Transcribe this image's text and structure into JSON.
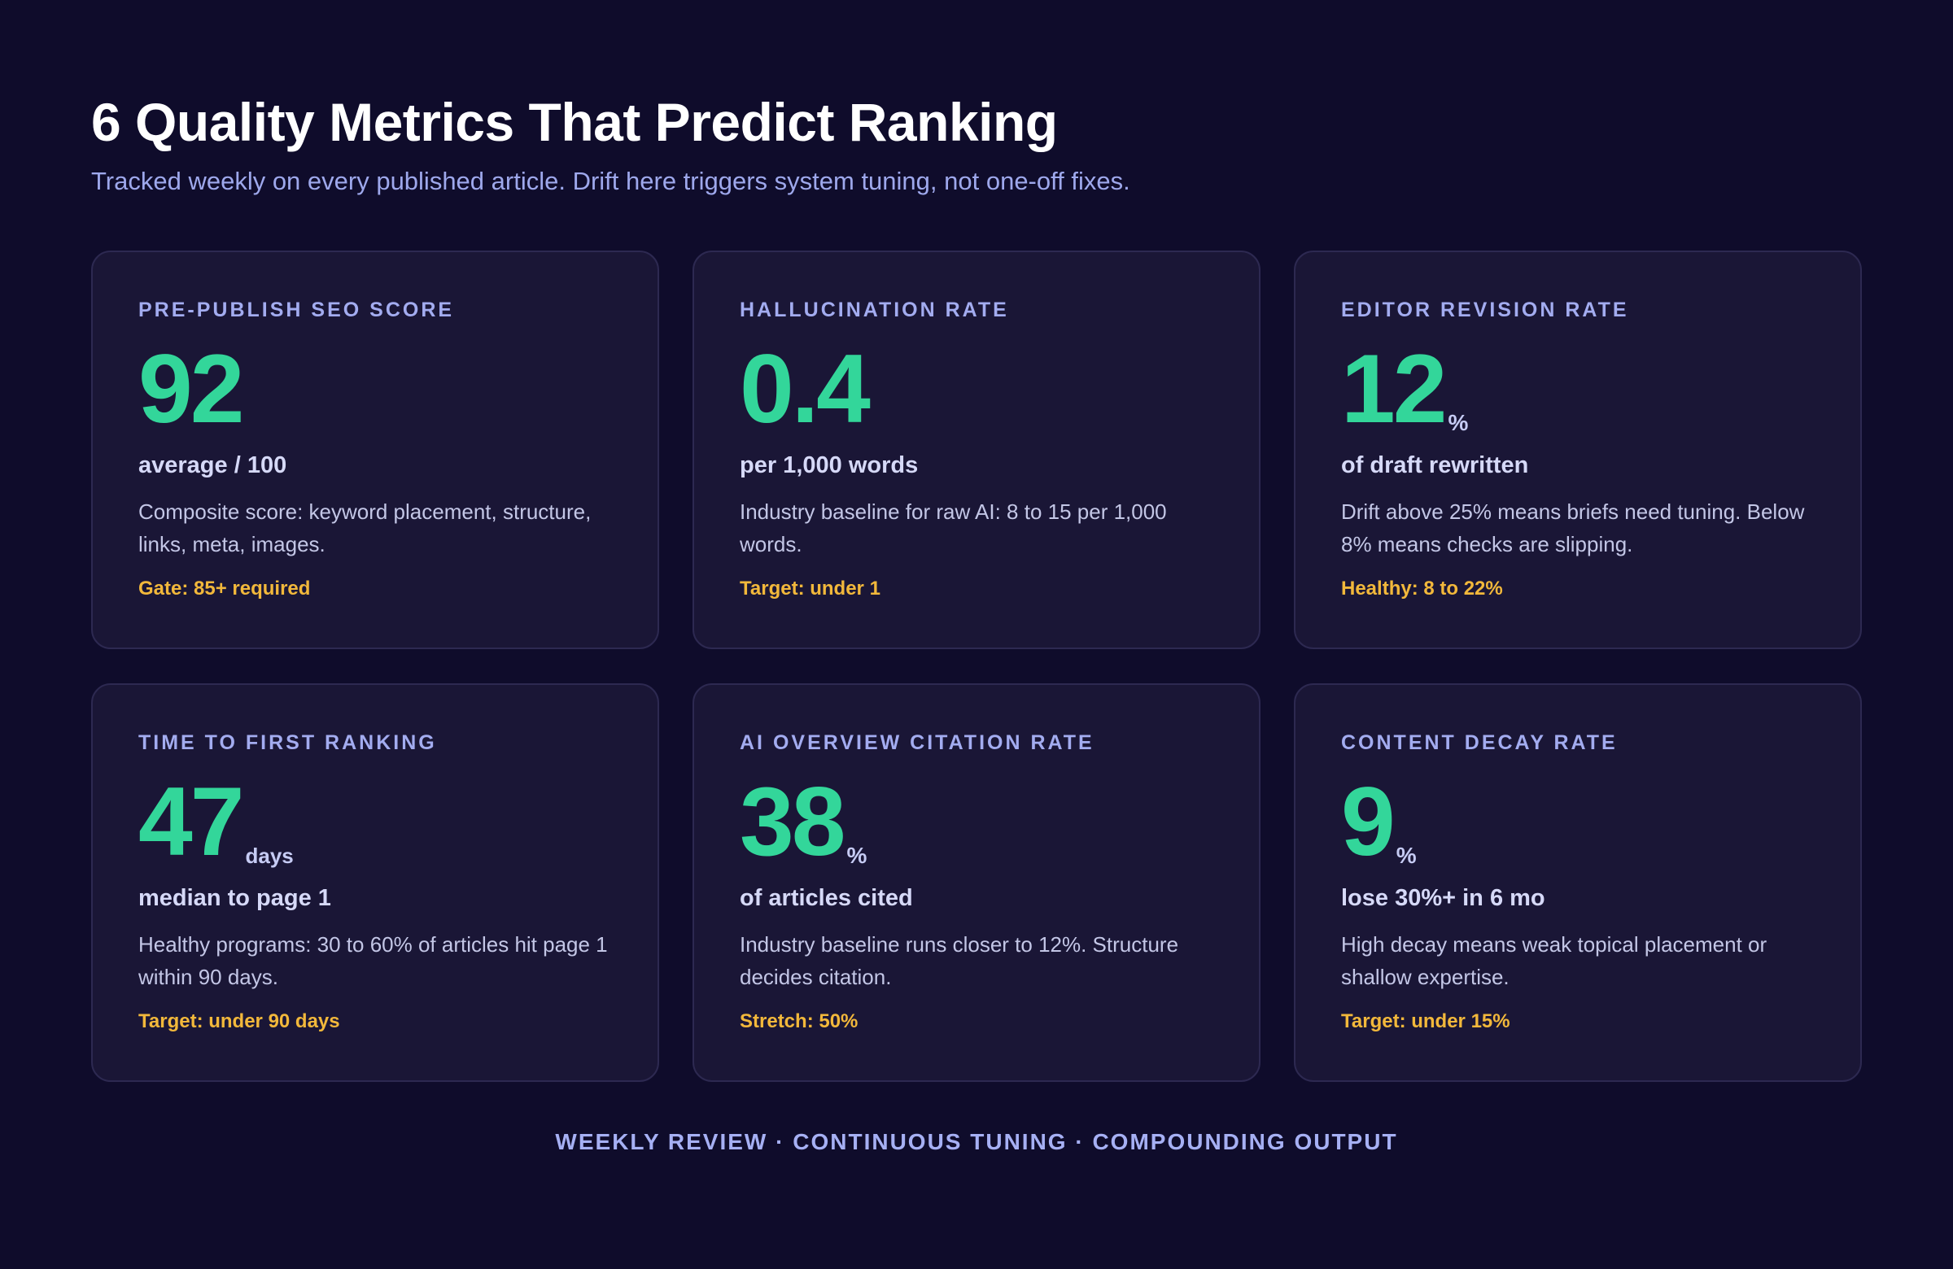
{
  "header": {
    "title": "6 Quality Metrics That Predict Ranking",
    "subtitle": "Tracked weekly on every published article. Drift here triggers system tuning, not one-off fixes."
  },
  "metrics": [
    {
      "label": "PRE-PUBLISH SEO SCORE",
      "value": "92",
      "unit": "",
      "headline": "average / 100",
      "description": "Composite score: keyword placement, structure, links, meta, images.",
      "target": "Gate: 85+ required"
    },
    {
      "label": "HALLUCINATION RATE",
      "value": "0.4",
      "unit": "",
      "headline": "per 1,000 words",
      "description": "Industry baseline for raw AI: 8 to 15 per 1,000 words.",
      "target": "Target: under 1"
    },
    {
      "label": "EDITOR REVISION RATE",
      "value": "12",
      "unit": "%",
      "headline": "of draft rewritten",
      "description": "Drift above 25% means briefs need tuning. Below 8% means checks are slipping.",
      "target": "Healthy: 8 to 22%"
    },
    {
      "label": "TIME TO FIRST RANKING",
      "value": "47",
      "unit": "days",
      "headline": "median to page 1",
      "description": "Healthy programs: 30 to 60% of articles hit page 1 within 90 days.",
      "target": "Target: under 90 days"
    },
    {
      "label": "AI OVERVIEW CITATION RATE",
      "value": "38",
      "unit": "%",
      "headline": "of articles cited",
      "description": "Industry baseline runs closer to 12%. Structure decides citation.",
      "target": "Stretch: 50%"
    },
    {
      "label": "CONTENT DECAY RATE",
      "value": "9",
      "unit": "%",
      "headline": "lose 30%+ in 6 mo",
      "description": "High decay means weak topical placement or shallow expertise.",
      "target": "Target: under 15%"
    }
  ],
  "footer": {
    "text": "WEEKLY REVIEW · CONTINUOUS TUNING · COMPOUNDING OUTPUT"
  },
  "colors": {
    "background": "#0f0c2b",
    "card": "#1a1636",
    "accent_value": "#33d69a",
    "target": "#f2b83b",
    "label": "#a3acf0"
  }
}
